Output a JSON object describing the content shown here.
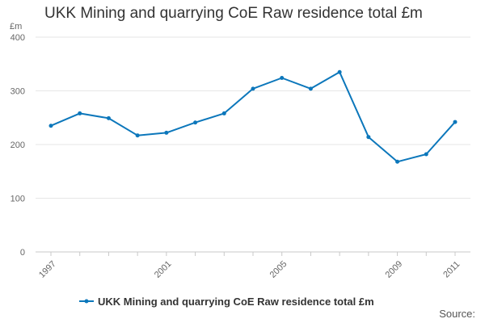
{
  "chart_data": {
    "type": "line",
    "title": "UKK Mining and quarrying CoE Raw residence total £m",
    "ylabel": "£m",
    "xlabel": "",
    "ylim": [
      0,
      400
    ],
    "yticks": [
      0,
      100,
      200,
      300,
      400
    ],
    "xlim": [
      1997,
      2011
    ],
    "xticks": [
      "1997",
      "2001",
      "2005",
      "2009",
      "2011"
    ],
    "grid": true,
    "legend_position": "bottom",
    "series": [
      {
        "name": "UKK Mining and quarrying CoE Raw residence total £m",
        "color": "#0c77bb",
        "x": [
          1997,
          1998,
          1999,
          2000,
          2001,
          2002,
          2003,
          2004,
          2005,
          2006,
          2007,
          2008,
          2009,
          2010,
          2011
        ],
        "values": [
          235,
          258,
          249,
          217,
          222,
          241,
          258,
          304,
          324,
          304,
          335,
          214,
          168,
          182,
          242
        ]
      }
    ]
  },
  "footer": {
    "source": "Source:"
  }
}
